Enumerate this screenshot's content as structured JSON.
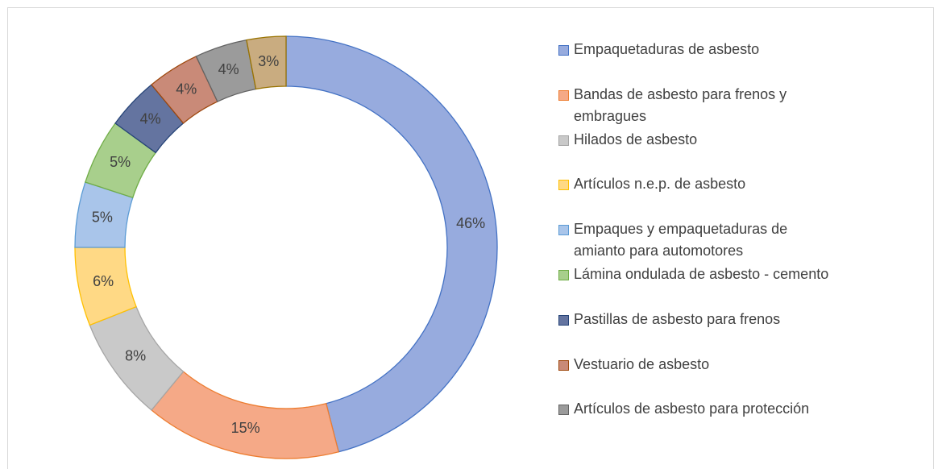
{
  "chart_data": {
    "type": "donut",
    "categories": [
      "Empaquetaduras de asbesto",
      "Bandas de asbesto para frenos y embragues",
      "Hilados de asbesto",
      "Artículos n.e.p. de asbesto",
      "Empaques y empaquetaduras de amianto para automotores",
      "Lámina ondulada de asbesto - cemento",
      "Pastillas de asbesto para frenos",
      "Vestuario de asbesto",
      "Artículos de asbesto para protección",
      null
    ],
    "values": [
      46,
      15,
      8,
      6,
      5,
      5,
      4,
      4,
      4,
      3
    ],
    "value_labels": [
      "46%",
      "15%",
      "8%",
      "6%",
      "5%",
      "5%",
      "4%",
      "4%",
      "4%",
      "3%"
    ],
    "colors": [
      "#97abde",
      "#f5a987",
      "#c9c9c9",
      "#ffd985",
      "#a9c5ea",
      "#a8cf8c",
      "#6474a0",
      "#c98a78",
      "#9b9b9b",
      "#c9ac80"
    ],
    "edge_colors": [
      "#4472c4",
      "#ed7d31",
      "#a5a5a5",
      "#ffc000",
      "#5b9bd5",
      "#70ad47",
      "#264478",
      "#9e480e",
      "#636363",
      "#997300"
    ],
    "legend": "right"
  }
}
